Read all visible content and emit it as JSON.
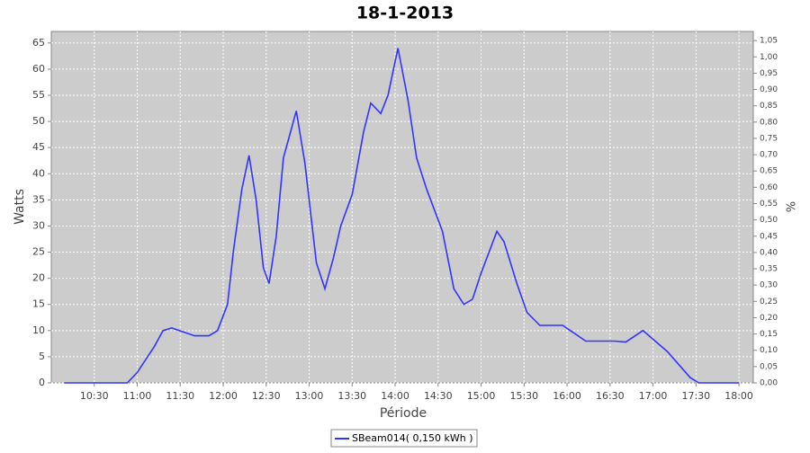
{
  "chart_data": {
    "type": "line",
    "title": "18-1-2013",
    "x_label": "Période",
    "y_label": "Watts",
    "y2_label": "%",
    "x": [
      "10:09",
      "10:30",
      "10:53",
      "11:00",
      "11:12",
      "11:18",
      "11:24",
      "11:40",
      "11:50",
      "11:56",
      "12:03",
      "12:07",
      "12:13",
      "12:18",
      "12:23",
      "12:28",
      "12:32",
      "12:37",
      "12:42",
      "12:51",
      "12:57",
      "13:05",
      "13:11",
      "13:17",
      "13:22",
      "13:30",
      "13:38",
      "13:43",
      "13:50",
      "13:55",
      "14:02",
      "14:09",
      "14:15",
      "14:22",
      "14:33",
      "14:41",
      "14:48",
      "14:54",
      "15:00",
      "15:11",
      "15:16",
      "15:25",
      "15:32",
      "15:41",
      "15:57",
      "16:13",
      "16:33",
      "16:41",
      "16:53",
      "17:10",
      "17:26",
      "17:32",
      "18:00"
    ],
    "series": [
      {
        "name": "SBeam014( 0,150 kWh )",
        "color": "#3333ff",
        "values": [
          0,
          0,
          0,
          2,
          7,
          10,
          10.5,
          9,
          9,
          10,
          15,
          25,
          37,
          43.5,
          35,
          22,
          19,
          28,
          43,
          52,
          42,
          23,
          18,
          24,
          30,
          36,
          48,
          53.5,
          51.5,
          55,
          64,
          54,
          43,
          37,
          29,
          18,
          15,
          16,
          21,
          29,
          27,
          19,
          13.5,
          11,
          11,
          8,
          8,
          7.8,
          10,
          6,
          1,
          0,
          0
        ]
      }
    ],
    "xlim": [
      "10:00",
      "18:10"
    ],
    "xticks": [
      "10:30",
      "11:00",
      "11:30",
      "12:00",
      "12:30",
      "13:00",
      "13:30",
      "14:00",
      "14:30",
      "15:00",
      "15:30",
      "16:00",
      "16:30",
      "17:00",
      "17:30",
      "18:00"
    ],
    "ylim": [
      0,
      67.2
    ],
    "yticks": [
      0,
      5,
      10,
      15,
      20,
      25,
      30,
      35,
      40,
      45,
      50,
      55,
      60,
      65
    ],
    "y2lim": [
      0,
      1.078
    ],
    "y2ticks": [
      {
        "value": 0,
        "label": "0,00"
      },
      {
        "value": 0.05,
        "label": "0,05"
      },
      {
        "value": 0.1,
        "label": "0,10"
      },
      {
        "value": 0.15,
        "label": "0,15"
      },
      {
        "value": 0.2,
        "label": "0,20"
      },
      {
        "value": 0.25,
        "label": "0,25"
      },
      {
        "value": 0.3,
        "label": "0,30"
      },
      {
        "value": 0.35,
        "label": "0,35"
      },
      {
        "value": 0.4,
        "label": "0,40"
      },
      {
        "value": 0.45,
        "label": "0,45"
      },
      {
        "value": 0.5,
        "label": "0,50"
      },
      {
        "value": 0.55,
        "label": "0,55"
      },
      {
        "value": 0.6,
        "label": "0,60"
      },
      {
        "value": 0.65,
        "label": "0,65"
      },
      {
        "value": 0.7,
        "label": "0,70"
      },
      {
        "value": 0.75,
        "label": "0,75"
      },
      {
        "value": 0.8,
        "label": "0,80"
      },
      {
        "value": 0.85,
        "label": "0,85"
      },
      {
        "value": 0.9,
        "label": "0,90"
      },
      {
        "value": 0.95,
        "label": "0,95"
      },
      {
        "value": 1.0,
        "label": "1,00"
      },
      {
        "value": 1.05,
        "label": "1,05"
      }
    ],
    "grid": true
  }
}
